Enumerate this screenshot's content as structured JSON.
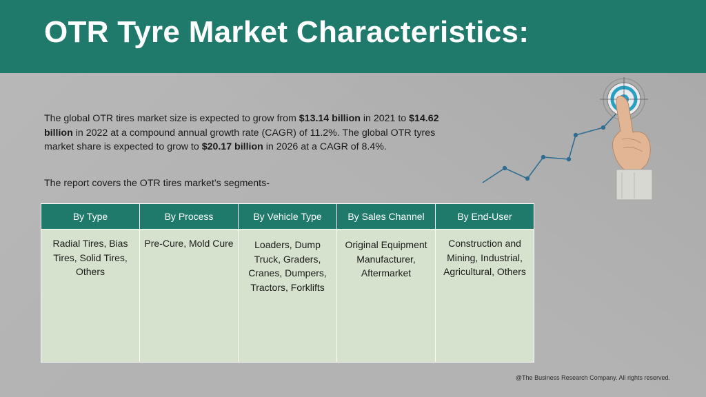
{
  "title": "OTR Tyre Market Characteristics:",
  "intro": {
    "p1_a": "The global OTR tires market size is expected to grow from ",
    "p1_b": "$13.14 billion",
    "p1_c": " in 2021 to ",
    "p1_d": "$14.62 billion",
    "p1_e": " in 2022 at a compound annual growth rate (CAGR) of 11.2%. The global OTR tyres market share is expected to grow to ",
    "p1_f": "$20.17 billion",
    "p1_g": " in 2026 at a CAGR of 8.4%."
  },
  "segments_note": "The report covers the OTR tires market’s segments-",
  "table": {
    "headers": [
      "By Type",
      "By Process",
      "By Vehicle Type",
      "By Sales Channel",
      "By End-User"
    ],
    "cells": [
      "Radial Tires, Bias Tires, Solid Tires, Others",
      "Pre-Cure, Mold Cure",
      "Loaders, Dump Truck, Graders, Cranes, Dumpers, Tractors, Forklifts",
      "Original Equipment Manufacturer, Aftermarket",
      "Construction and Mining, Industrial, Agricultural, Others"
    ]
  },
  "graphic": {
    "icon": "target-hand-growth-icon",
    "accent": "#2a9fc4",
    "line_color": "#2f6e92"
  },
  "colors": {
    "header": "#1f7a6b",
    "cell_bg": "#d6e2cd",
    "page_bg": "#b3b3b3"
  },
  "footer": "@The Business Research Company. All rights reserved."
}
